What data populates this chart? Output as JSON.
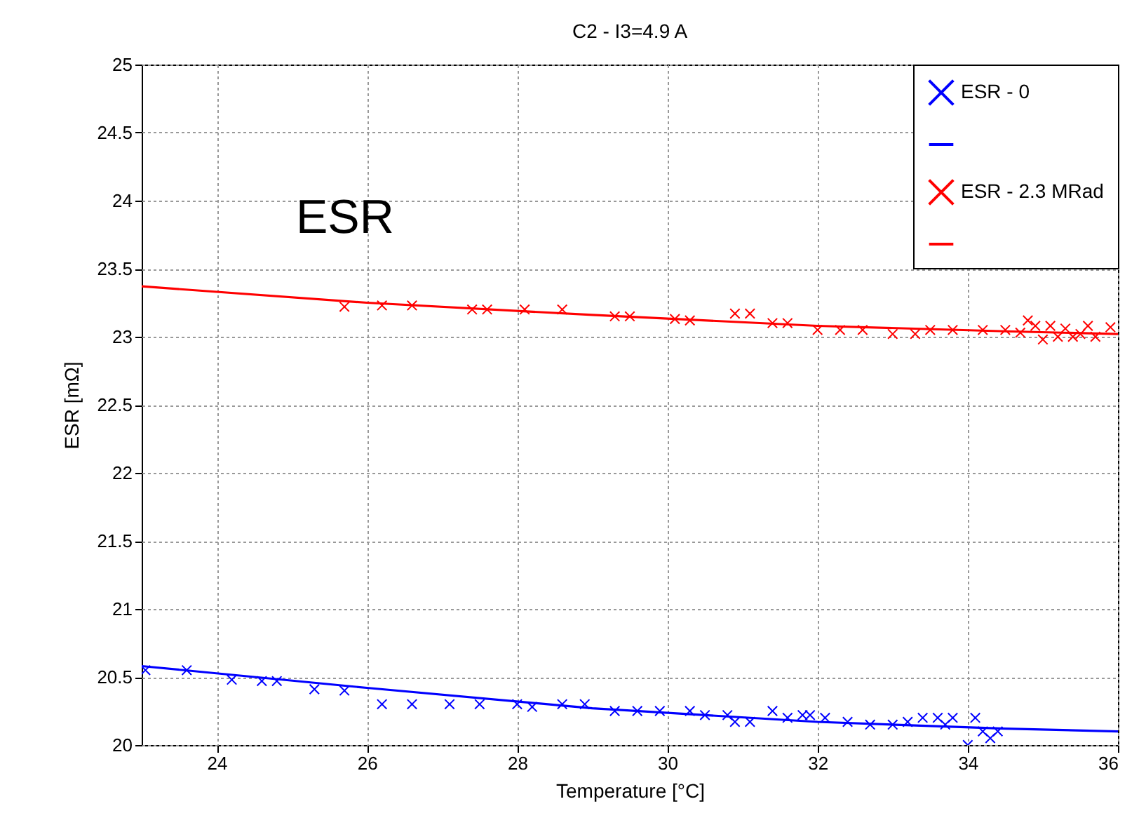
{
  "chart_data": {
    "type": "scatter",
    "title": "C2 - I3=4.9 A",
    "xlabel": "Temperature [°C]",
    "ylabel": "ESR [mΩ]",
    "annotations": [
      "ESR"
    ],
    "xlim": [
      23,
      36
    ],
    "xticks": [
      24,
      26,
      28,
      30,
      32,
      34,
      36
    ],
    "ylim": [
      20,
      25
    ],
    "yticks": [
      20,
      20.5,
      21,
      21.5,
      22,
      22.5,
      23,
      23.5,
      24,
      24.5,
      25
    ],
    "grid": true,
    "legend": "top right",
    "marker": "cross",
    "series": [
      {
        "name": "ESR - 0",
        "color": "#0000ff",
        "x": [
          23.05,
          23.6,
          24.2,
          24.6,
          24.8,
          25.3,
          25.7,
          26.2,
          26.6,
          27.1,
          27.5,
          28.0,
          28.2,
          28.6,
          28.9,
          29.3,
          29.6,
          29.9,
          30.3,
          30.5,
          30.8,
          30.9,
          31.1,
          31.4,
          31.6,
          31.8,
          31.9,
          32.1,
          32.4,
          32.7,
          33.0,
          33.2,
          33.4,
          33.6,
          33.7,
          33.8,
          34.0,
          34.1,
          34.2,
          34.3,
          34.4
        ],
        "values": [
          20.55,
          20.55,
          20.48,
          20.47,
          20.47,
          20.41,
          20.4,
          20.3,
          20.3,
          20.3,
          20.3,
          20.3,
          20.28,
          20.3,
          20.3,
          20.25,
          20.25,
          20.25,
          20.25,
          20.22,
          20.22,
          20.17,
          20.17,
          20.25,
          20.2,
          20.22,
          20.22,
          20.2,
          20.17,
          20.15,
          20.15,
          20.17,
          20.2,
          20.2,
          20.15,
          20.2,
          20.0,
          20.2,
          20.1,
          20.05,
          20.1
        ]
      },
      {
        "type": "line",
        "marker": "none",
        "color": "#0000ff",
        "x": [
          23,
          26,
          29,
          32,
          34.5,
          36
        ],
        "values": [
          20.58,
          20.42,
          20.27,
          20.17,
          20.12,
          20.1
        ]
      },
      {
        "name": "ESR - 2.3 MRad",
        "color": "#ff0000",
        "x": [
          25.7,
          26.2,
          26.6,
          27.4,
          27.6,
          28.1,
          28.6,
          29.3,
          29.5,
          30.1,
          30.3,
          30.9,
          31.1,
          31.4,
          31.6,
          32.0,
          32.3,
          32.6,
          33.0,
          33.3,
          33.5,
          33.8,
          34.2,
          34.5,
          34.7,
          34.8,
          34.9,
          35.0,
          35.1,
          35.2,
          35.3,
          35.4,
          35.5,
          35.6,
          35.7,
          35.9
        ],
        "values": [
          23.22,
          23.23,
          23.23,
          23.2,
          23.2,
          23.2,
          23.2,
          23.15,
          23.15,
          23.13,
          23.12,
          23.17,
          23.17,
          23.1,
          23.1,
          23.05,
          23.05,
          23.05,
          23.02,
          23.02,
          23.05,
          23.05,
          23.05,
          23.05,
          23.03,
          23.12,
          23.08,
          22.98,
          23.08,
          23.0,
          23.06,
          23.0,
          23.02,
          23.08,
          23.0,
          23.07
        ]
      },
      {
        "type": "line",
        "marker": "none",
        "color": "#ff0000",
        "x": [
          23,
          26,
          29,
          32,
          34.5,
          36
        ],
        "values": [
          23.37,
          23.25,
          23.16,
          23.08,
          23.04,
          23.02
        ]
      }
    ]
  }
}
